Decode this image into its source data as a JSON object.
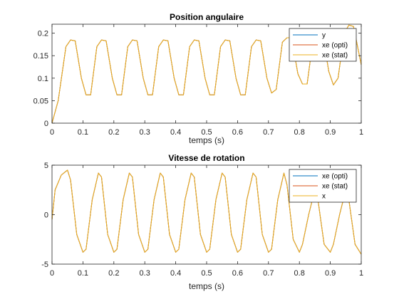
{
  "colors": {
    "c1": "#0072BD",
    "c2": "#D95319",
    "c3": "#EDB120",
    "axis": "#262626",
    "bg": "#ffffff"
  },
  "chart_data": [
    {
      "type": "line",
      "title": "Position angulaire",
      "xlabel": "temps (s)",
      "ylabel": "",
      "xlim": [
        0,
        1
      ],
      "ylim": [
        0,
        0.22
      ],
      "xticks": [
        0,
        0.1,
        0.2,
        0.3,
        0.4,
        0.5,
        0.6,
        0.7,
        0.8,
        0.9,
        1
      ],
      "xticklabels": [
        "0",
        "0.1",
        "0.2",
        "0.3",
        "0.4",
        "0.5",
        "0.6",
        "0.7",
        "0.8",
        "0.9",
        "1"
      ],
      "yticks": [
        0,
        0.05,
        0.1,
        0.15,
        0.2
      ],
      "yticklabels": [
        "0",
        "0.05",
        "0.1",
        "0.15",
        "0.2"
      ],
      "grid": false,
      "legend_position": "top-right",
      "x": [
        0,
        0.02,
        0.045,
        0.06,
        0.075,
        0.095,
        0.11,
        0.125,
        0.145,
        0.16,
        0.175,
        0.195,
        0.21,
        0.225,
        0.245,
        0.26,
        0.275,
        0.295,
        0.31,
        0.325,
        0.345,
        0.36,
        0.375,
        0.395,
        0.41,
        0.425,
        0.445,
        0.46,
        0.475,
        0.495,
        0.51,
        0.525,
        0.545,
        0.56,
        0.575,
        0.595,
        0.61,
        0.625,
        0.645,
        0.66,
        0.675,
        0.695,
        0.71,
        0.725,
        0.745,
        0.76,
        0.775,
        0.795,
        0.81,
        0.825,
        0.845,
        0.86,
        0.875,
        0.895,
        0.91,
        0.925,
        0.945,
        0.96,
        0.975,
        1
      ],
      "series": [
        {
          "name": "y",
          "color_key": "c1",
          "values": [
            0,
            0.05,
            0.17,
            0.185,
            0.183,
            0.1,
            0.063,
            0.063,
            0.17,
            0.185,
            0.183,
            0.1,
            0.063,
            0.063,
            0.17,
            0.185,
            0.183,
            0.1,
            0.063,
            0.063,
            0.17,
            0.185,
            0.183,
            0.1,
            0.063,
            0.063,
            0.17,
            0.185,
            0.183,
            0.1,
            0.063,
            0.063,
            0.17,
            0.185,
            0.183,
            0.1,
            0.063,
            0.063,
            0.17,
            0.185,
            0.183,
            0.1,
            0.067,
            0.075,
            0.18,
            0.19,
            0.19,
            0.11,
            0.087,
            0.087,
            0.19,
            0.2,
            0.2,
            0.115,
            0.085,
            0.1,
            0.2,
            0.218,
            0.215,
            0.13
          ]
        },
        {
          "name": "xe (opti)",
          "color_key": "c2",
          "values": [
            0,
            0.05,
            0.17,
            0.185,
            0.183,
            0.1,
            0.063,
            0.063,
            0.17,
            0.185,
            0.183,
            0.1,
            0.063,
            0.063,
            0.17,
            0.185,
            0.183,
            0.1,
            0.063,
            0.063,
            0.17,
            0.185,
            0.183,
            0.1,
            0.063,
            0.063,
            0.17,
            0.185,
            0.183,
            0.1,
            0.063,
            0.063,
            0.17,
            0.185,
            0.183,
            0.1,
            0.063,
            0.063,
            0.17,
            0.185,
            0.183,
            0.1,
            0.067,
            0.075,
            0.18,
            0.19,
            0.19,
            0.11,
            0.087,
            0.087,
            0.19,
            0.2,
            0.2,
            0.115,
            0.085,
            0.1,
            0.2,
            0.218,
            0.215,
            0.13
          ]
        },
        {
          "name": "xe (stat)",
          "color_key": "c3",
          "values": [
            0,
            0.05,
            0.17,
            0.185,
            0.183,
            0.1,
            0.063,
            0.063,
            0.17,
            0.185,
            0.183,
            0.1,
            0.063,
            0.063,
            0.17,
            0.185,
            0.183,
            0.1,
            0.063,
            0.063,
            0.17,
            0.185,
            0.183,
            0.1,
            0.063,
            0.063,
            0.17,
            0.185,
            0.183,
            0.1,
            0.063,
            0.063,
            0.17,
            0.185,
            0.183,
            0.1,
            0.063,
            0.063,
            0.17,
            0.185,
            0.183,
            0.1,
            0.067,
            0.075,
            0.18,
            0.19,
            0.19,
            0.11,
            0.087,
            0.087,
            0.19,
            0.2,
            0.2,
            0.115,
            0.085,
            0.1,
            0.2,
            0.218,
            0.215,
            0.13
          ]
        }
      ]
    },
    {
      "type": "line",
      "title": "Vitesse de rotation",
      "xlabel": "temps (s)",
      "ylabel": "",
      "xlim": [
        0,
        1
      ],
      "ylim": [
        -5,
        5
      ],
      "xticks": [
        0,
        0.1,
        0.2,
        0.3,
        0.4,
        0.5,
        0.6,
        0.7,
        0.8,
        0.9,
        1
      ],
      "xticklabels": [
        "0",
        "0.1",
        "0.2",
        "0.3",
        "0.4",
        "0.5",
        "0.6",
        "0.7",
        "0.8",
        "0.9",
        "1"
      ],
      "yticks": [
        -5,
        0,
        5
      ],
      "yticklabels": [
        "-5",
        "0",
        "5"
      ],
      "grid": false,
      "legend_position": "top-right",
      "x": [
        0,
        0.01,
        0.03,
        0.05,
        0.06,
        0.08,
        0.1,
        0.11,
        0.13,
        0.15,
        0.16,
        0.18,
        0.2,
        0.21,
        0.23,
        0.25,
        0.26,
        0.28,
        0.3,
        0.31,
        0.33,
        0.35,
        0.36,
        0.38,
        0.4,
        0.41,
        0.43,
        0.45,
        0.46,
        0.48,
        0.5,
        0.51,
        0.53,
        0.55,
        0.56,
        0.58,
        0.6,
        0.61,
        0.63,
        0.65,
        0.66,
        0.68,
        0.7,
        0.71,
        0.73,
        0.75,
        0.76,
        0.78,
        0.8,
        0.81,
        0.83,
        0.85,
        0.86,
        0.88,
        0.9,
        0.91,
        0.93,
        0.95,
        0.96,
        0.98,
        1
      ],
      "series": [
        {
          "name": "xe (opti)",
          "color_key": "c1",
          "values": [
            -0.5,
            2.5,
            4.0,
            4.5,
            3.5,
            -2.0,
            -3.8,
            -3.5,
            1.5,
            4.2,
            3.8,
            -2.0,
            -3.8,
            -3.5,
            1.5,
            4.2,
            3.8,
            -2.0,
            -3.8,
            -3.5,
            1.5,
            4.2,
            3.8,
            -2.0,
            -3.8,
            -3.5,
            1.5,
            4.2,
            3.8,
            -2.0,
            -3.8,
            -3.5,
            1.5,
            4.2,
            3.8,
            -2.0,
            -3.8,
            -3.5,
            1.5,
            4.2,
            3.8,
            -2.0,
            -3.8,
            -3.5,
            1.5,
            4.2,
            3.0,
            -2.5,
            -3.8,
            -3.0,
            0.0,
            2.5,
            1.5,
            -3.0,
            -3.8,
            -3.0,
            0.0,
            2.5,
            1.5,
            -3.0,
            -4.0
          ]
        },
        {
          "name": "xe (stat)",
          "color_key": "c2",
          "values": [
            -0.5,
            2.5,
            4.0,
            4.5,
            3.5,
            -2.0,
            -3.8,
            -3.5,
            1.5,
            4.2,
            3.8,
            -2.0,
            -3.8,
            -3.5,
            1.5,
            4.2,
            3.8,
            -2.0,
            -3.8,
            -3.5,
            1.5,
            4.2,
            3.8,
            -2.0,
            -3.8,
            -3.5,
            1.5,
            4.2,
            3.8,
            -2.0,
            -3.8,
            -3.5,
            1.5,
            4.2,
            3.8,
            -2.0,
            -3.8,
            -3.5,
            1.5,
            4.2,
            3.8,
            -2.0,
            -3.8,
            -3.5,
            1.5,
            4.2,
            3.0,
            -2.5,
            -3.8,
            -3.0,
            0.0,
            2.5,
            1.5,
            -3.0,
            -3.8,
            -3.0,
            0.0,
            2.5,
            1.5,
            -3.0,
            -4.0
          ]
        },
        {
          "name": "x",
          "color_key": "c3",
          "values": [
            -0.5,
            2.5,
            4.0,
            4.5,
            3.5,
            -2.0,
            -3.8,
            -3.5,
            1.5,
            4.2,
            3.8,
            -2.0,
            -3.8,
            -3.5,
            1.5,
            4.2,
            3.8,
            -2.0,
            -3.8,
            -3.5,
            1.5,
            4.2,
            3.8,
            -2.0,
            -3.8,
            -3.5,
            1.5,
            4.2,
            3.8,
            -2.0,
            -3.8,
            -3.5,
            1.5,
            4.2,
            3.8,
            -2.0,
            -3.8,
            -3.5,
            1.5,
            4.2,
            3.8,
            -2.0,
            -3.8,
            -3.5,
            1.5,
            4.2,
            3.0,
            -2.5,
            -3.8,
            -3.0,
            0.0,
            2.5,
            1.5,
            -3.0,
            -3.8,
            -3.0,
            0.0,
            2.5,
            1.5,
            -3.0,
            -4.0
          ]
        }
      ]
    }
  ]
}
